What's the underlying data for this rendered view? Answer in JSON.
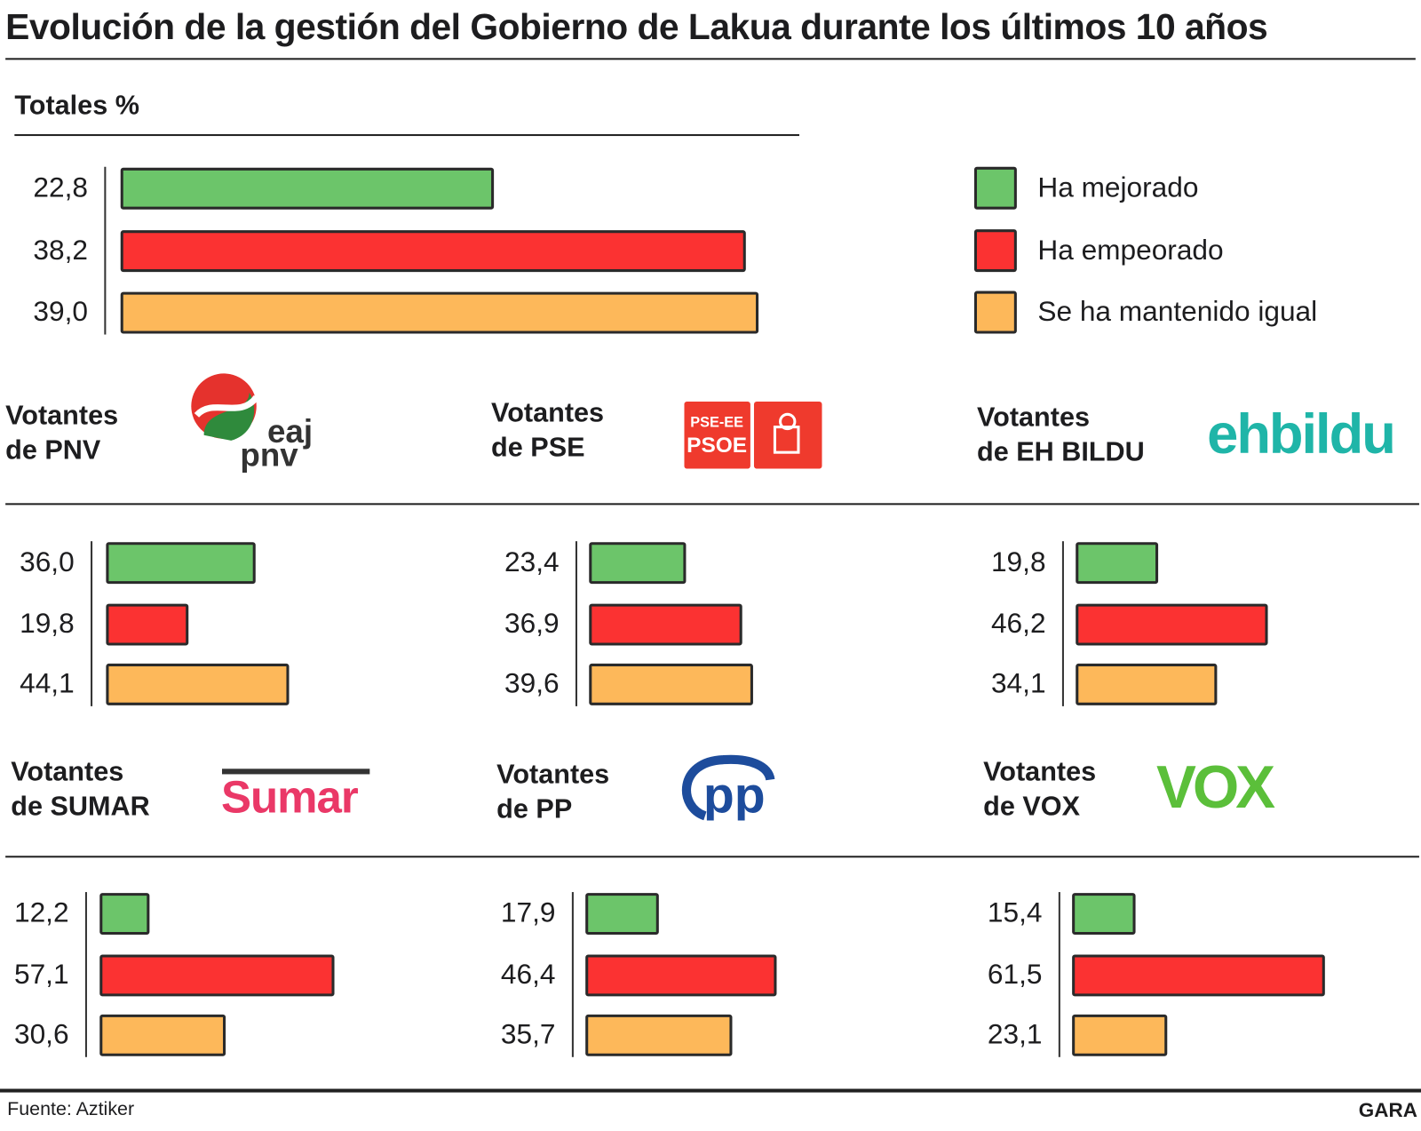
{
  "title": "Evolución de la gestión del Gobierno de Lakua durante los últimos 10 años",
  "colors": {
    "mejorado": "#6cc56a",
    "empeorado": "#fb3232",
    "igual": "#fdb85a"
  },
  "legend": [
    {
      "key": "mejorado",
      "label": "Ha mejorado"
    },
    {
      "key": "empeorado",
      "label": "Ha empeorado"
    },
    {
      "key": "igual",
      "label": "Se ha mantenido igual"
    }
  ],
  "source": "Fuente: Aztiker",
  "brand": "GARA",
  "chart_data": [
    {
      "type": "bar",
      "orientation": "horizontal",
      "title": "Totales %",
      "categories": [
        "Ha mejorado",
        "Ha empeorado",
        "Se ha mantenido igual"
      ],
      "values": [
        22.8,
        38.2,
        39.0
      ]
    },
    {
      "type": "bar",
      "orientation": "horizontal",
      "title": "Votantes de PNV",
      "title_lines": [
        "Votantes",
        "de PNV"
      ],
      "logo": "eaj pnv",
      "categories": [
        "Ha mejorado",
        "Ha empeorado",
        "Se ha mantenido igual"
      ],
      "values": [
        36.0,
        19.8,
        44.1
      ]
    },
    {
      "type": "bar",
      "orientation": "horizontal",
      "title": "Votantes de PSE",
      "title_lines": [
        "Votantes",
        "de PSE"
      ],
      "logo": "PSE-EE PSOE",
      "categories": [
        "Ha mejorado",
        "Ha empeorado",
        "Se ha mantenido igual"
      ],
      "values": [
        23.4,
        36.9,
        39.6
      ]
    },
    {
      "type": "bar",
      "orientation": "horizontal",
      "title": "Votantes de EH BILDU",
      "title_lines": [
        "Votantes",
        "de EH BILDU"
      ],
      "logo": "ehbildu",
      "categories": [
        "Ha mejorado",
        "Ha empeorado",
        "Se ha mantenido igual"
      ],
      "values": [
        19.8,
        46.2,
        34.1
      ]
    },
    {
      "type": "bar",
      "orientation": "horizontal",
      "title": "Votantes de SUMAR",
      "title_lines": [
        "Votantes",
        "de SUMAR"
      ],
      "logo": "Sumar",
      "categories": [
        "Ha mejorado",
        "Ha empeorado",
        "Se ha mantenido igual"
      ],
      "values": [
        12.2,
        57.1,
        30.6
      ]
    },
    {
      "type": "bar",
      "orientation": "horizontal",
      "title": "Votantes de PP",
      "title_lines": [
        "Votantes",
        "de PP"
      ],
      "logo": "pp",
      "categories": [
        "Ha mejorado",
        "Ha empeorado",
        "Se ha mantenido igual"
      ],
      "values": [
        17.9,
        46.4,
        35.7
      ]
    },
    {
      "type": "bar",
      "orientation": "horizontal",
      "title": "Votantes de VOX",
      "title_lines": [
        "Votantes",
        "de VOX"
      ],
      "logo": "VOX",
      "categories": [
        "Ha mejorado",
        "Ha empeorado",
        "Se ha mantenido igual"
      ],
      "values": [
        15.4,
        61.5,
        23.1
      ]
    }
  ]
}
